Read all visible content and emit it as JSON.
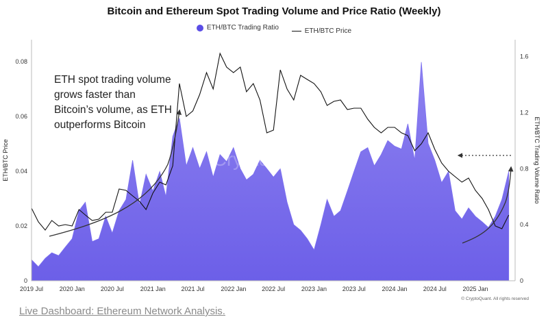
{
  "chart_data": {
    "type": "area",
    "title": "Bitcoin and Ethereum Spot Trading Volume and Price Ratio (Weekly)",
    "legend_position": "top-center",
    "grid": false,
    "annotation": "ETH spot trading volume grows faster than Bitcoin’s volume, as ETH outperforms Bitcoin",
    "credit": "© CryptoQuant. All rights reserved",
    "watermark": "CryptoQuant",
    "x_ticks": [
      "2019 Jul",
      "2020 Jan",
      "2020 Jul",
      "2021 Jan",
      "2021 Jul",
      "2022 Jan",
      "2022 Jul",
      "2023 Jan",
      "2023 Jul",
      "2024 Jan",
      "2024 Jul",
      "2025 Jan"
    ],
    "y_left": {
      "label": "ETH/BTC Price",
      "ticks": [
        "0",
        "0.02",
        "0.04",
        "0.06",
        "0.08"
      ],
      "range": [
        0,
        0.088
      ]
    },
    "y_right": {
      "label": "ETH/BTC Trading Volume Ratio",
      "ticks": [
        "0",
        "0.4",
        "0.8",
        "1.2",
        "1.6"
      ],
      "range": [
        0,
        1.72
      ]
    },
    "x_range": [
      "2019-07-01",
      "2025-06-30"
    ],
    "series": [
      {
        "name": "ETH/BTC Trading Ratio",
        "type": "area",
        "axis": "right",
        "color": "#5a4de6",
        "points": [
          [
            "2019-07-01",
            0.15
          ],
          [
            "2019-08-01",
            0.1
          ],
          [
            "2019-09-01",
            0.16
          ],
          [
            "2019-10-01",
            0.2
          ],
          [
            "2019-11-01",
            0.18
          ],
          [
            "2019-12-01",
            0.24
          ],
          [
            "2020-01-01",
            0.3
          ],
          [
            "2020-02-01",
            0.5
          ],
          [
            "2020-03-01",
            0.56
          ],
          [
            "2020-04-01",
            0.28
          ],
          [
            "2020-05-01",
            0.3
          ],
          [
            "2020-06-01",
            0.46
          ],
          [
            "2020-07-01",
            0.34
          ],
          [
            "2020-08-01",
            0.5
          ],
          [
            "2020-09-01",
            0.58
          ],
          [
            "2020-10-01",
            0.86
          ],
          [
            "2020-11-01",
            0.54
          ],
          [
            "2020-12-01",
            0.76
          ],
          [
            "2021-01-01",
            0.64
          ],
          [
            "2021-02-01",
            0.78
          ],
          [
            "2021-03-01",
            0.6
          ],
          [
            "2021-04-01",
            1.03
          ],
          [
            "2021-05-01",
            1.16
          ],
          [
            "2021-06-01",
            0.82
          ],
          [
            "2021-07-01",
            0.95
          ],
          [
            "2021-08-01",
            0.8
          ],
          [
            "2021-09-01",
            0.92
          ],
          [
            "2021-10-01",
            0.74
          ],
          [
            "2021-11-01",
            0.9
          ],
          [
            "2021-12-01",
            0.85
          ],
          [
            "2022-01-01",
            0.95
          ],
          [
            "2022-02-01",
            0.8
          ],
          [
            "2022-03-01",
            0.72
          ],
          [
            "2022-04-01",
            0.76
          ],
          [
            "2022-05-01",
            0.86
          ],
          [
            "2022-06-01",
            0.8
          ],
          [
            "2022-07-01",
            0.74
          ],
          [
            "2022-08-01",
            0.8
          ],
          [
            "2022-09-01",
            0.56
          ],
          [
            "2022-10-01",
            0.4
          ],
          [
            "2022-11-01",
            0.36
          ],
          [
            "2022-12-01",
            0.3
          ],
          [
            "2023-01-01",
            0.22
          ],
          [
            "2023-02-01",
            0.4
          ],
          [
            "2023-03-01",
            0.58
          ],
          [
            "2023-04-01",
            0.46
          ],
          [
            "2023-05-01",
            0.5
          ],
          [
            "2023-06-01",
            0.64
          ],
          [
            "2023-07-01",
            0.78
          ],
          [
            "2023-08-01",
            0.92
          ],
          [
            "2023-09-01",
            0.95
          ],
          [
            "2023-10-01",
            0.82
          ],
          [
            "2023-11-01",
            0.9
          ],
          [
            "2023-12-01",
            1.0
          ],
          [
            "2024-01-01",
            0.96
          ],
          [
            "2024-02-01",
            0.94
          ],
          [
            "2024-03-01",
            1.12
          ],
          [
            "2024-04-01",
            0.86
          ],
          [
            "2024-05-01",
            1.56
          ],
          [
            "2024-06-01",
            0.98
          ],
          [
            "2024-07-01",
            0.86
          ],
          [
            "2024-08-01",
            0.7
          ],
          [
            "2024-09-01",
            0.78
          ],
          [
            "2024-10-01",
            0.5
          ],
          [
            "2024-11-01",
            0.44
          ],
          [
            "2024-12-01",
            0.52
          ],
          [
            "2025-01-01",
            0.46
          ],
          [
            "2025-02-01",
            0.42
          ],
          [
            "2025-03-01",
            0.38
          ],
          [
            "2025-04-01",
            0.46
          ],
          [
            "2025-05-01",
            0.58
          ],
          [
            "2025-06-01",
            0.78
          ]
        ]
      },
      {
        "name": "ETH/BTC Price",
        "type": "line",
        "axis": "left",
        "color": "#111111",
        "points": [
          [
            "2019-07-01",
            0.0265
          ],
          [
            "2019-08-01",
            0.0215
          ],
          [
            "2019-09-01",
            0.0185
          ],
          [
            "2019-10-01",
            0.022
          ],
          [
            "2019-11-01",
            0.02
          ],
          [
            "2019-12-01",
            0.0205
          ],
          [
            "2020-01-01",
            0.02
          ],
          [
            "2020-02-01",
            0.026
          ],
          [
            "2020-03-01",
            0.024
          ],
          [
            "2020-04-01",
            0.022
          ],
          [
            "2020-05-01",
            0.0225
          ],
          [
            "2020-06-01",
            0.025
          ],
          [
            "2020-07-01",
            0.025
          ],
          [
            "2020-08-01",
            0.0335
          ],
          [
            "2020-09-01",
            0.033
          ],
          [
            "2020-10-01",
            0.031
          ],
          [
            "2020-11-01",
            0.029
          ],
          [
            "2020-12-01",
            0.026
          ],
          [
            "2021-01-01",
            0.032
          ],
          [
            "2021-02-01",
            0.036
          ],
          [
            "2021-03-01",
            0.035
          ],
          [
            "2021-04-01",
            0.042
          ],
          [
            "2021-05-01",
            0.072
          ],
          [
            "2021-06-01",
            0.06
          ],
          [
            "2021-07-01",
            0.062
          ],
          [
            "2021-08-01",
            0.068
          ],
          [
            "2021-09-01",
            0.076
          ],
          [
            "2021-10-01",
            0.07
          ],
          [
            "2021-11-01",
            0.083
          ],
          [
            "2021-12-01",
            0.078
          ],
          [
            "2022-01-01",
            0.076
          ],
          [
            "2022-02-01",
            0.078
          ],
          [
            "2022-03-01",
            0.069
          ],
          [
            "2022-04-01",
            0.072
          ],
          [
            "2022-05-01",
            0.066
          ],
          [
            "2022-06-01",
            0.054
          ],
          [
            "2022-07-01",
            0.055
          ],
          [
            "2022-08-01",
            0.077
          ],
          [
            "2022-09-01",
            0.07
          ],
          [
            "2022-10-01",
            0.066
          ],
          [
            "2022-11-01",
            0.075
          ],
          [
            "2022-12-01",
            0.0735
          ],
          [
            "2023-01-01",
            0.072
          ],
          [
            "2023-02-01",
            0.069
          ],
          [
            "2023-03-01",
            0.064
          ],
          [
            "2023-04-01",
            0.0655
          ],
          [
            "2023-05-01",
            0.066
          ],
          [
            "2023-06-01",
            0.0625
          ],
          [
            "2023-07-01",
            0.063
          ],
          [
            "2023-08-01",
            0.063
          ],
          [
            "2023-09-01",
            0.059
          ],
          [
            "2023-10-01",
            0.056
          ],
          [
            "2023-11-01",
            0.054
          ],
          [
            "2023-12-01",
            0.056
          ],
          [
            "2024-01-01",
            0.056
          ],
          [
            "2024-02-01",
            0.054
          ],
          [
            "2024-03-01",
            0.053
          ],
          [
            "2024-04-01",
            0.0475
          ],
          [
            "2024-05-01",
            0.05
          ],
          [
            "2024-06-01",
            0.054
          ],
          [
            "2024-07-01",
            0.048
          ],
          [
            "2024-08-01",
            0.043
          ],
          [
            "2024-09-01",
            0.04
          ],
          [
            "2024-10-01",
            0.038
          ],
          [
            "2024-11-01",
            0.036
          ],
          [
            "2024-12-01",
            0.0375
          ],
          [
            "2025-01-01",
            0.033
          ],
          [
            "2025-02-01",
            0.03
          ],
          [
            "2025-03-01",
            0.026
          ],
          [
            "2025-04-01",
            0.02
          ],
          [
            "2025-05-01",
            0.019
          ],
          [
            "2025-06-01",
            0.024
          ]
        ]
      }
    ]
  },
  "footer": {
    "link_text": "Live Dashboard: Ethereum Network Analysis."
  }
}
